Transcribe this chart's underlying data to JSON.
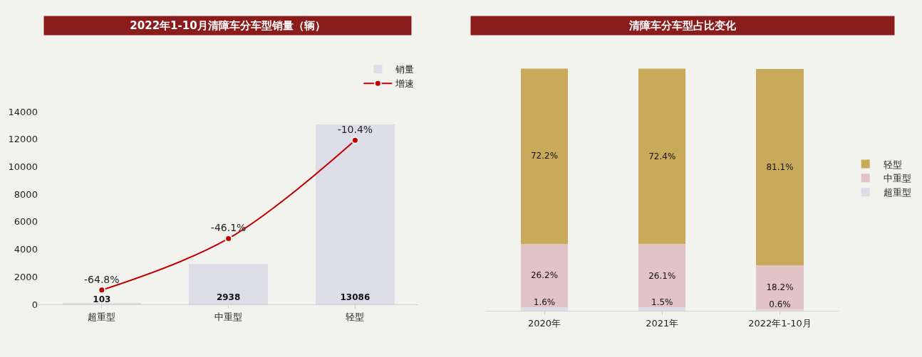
{
  "chart_data": [
    {
      "type": "bar",
      "title": "2022年1-10月清障车分车型销量（辆）",
      "categories": [
        "超重型",
        "中重型",
        "轻型"
      ],
      "series": [
        {
          "name": "销量",
          "type": "bar",
          "color": "#dcdde6",
          "values": [
            103,
            2938,
            13086
          ],
          "value_labels": [
            "103",
            "2938",
            "13086"
          ]
        },
        {
          "name": "增速",
          "type": "line",
          "axis": "y2",
          "color": "#c00000",
          "marker": "circle",
          "values": [
            -64.8,
            -46.1,
            -10.4
          ],
          "value_labels": [
            "-64.8%",
            "-46.1%",
            "-10.4%"
          ]
        }
      ],
      "ylim": [
        0,
        14000
      ],
      "yticks": [
        0,
        2000,
        4000,
        6000,
        8000,
        10000,
        12000,
        14000
      ],
      "y2lim": [
        -70,
        0
      ],
      "legend": "top right",
      "grid": false
    },
    {
      "type": "bar",
      "stacked": true,
      "title": "清障车分车型占比变化",
      "categories": [
        "2020年",
        "2021年",
        "2022年1-10月"
      ],
      "series": [
        {
          "name": "超重型",
          "color": "#dcdde6",
          "values": [
            1.6,
            1.5,
            0.6
          ],
          "value_labels": [
            "1.6%",
            "1.5%",
            "0.6%"
          ]
        },
        {
          "name": "中重型",
          "color": "#e2c3c6",
          "values": [
            26.2,
            26.1,
            18.2
          ],
          "value_labels": [
            "26.2%",
            "26.1%",
            "18.2%"
          ]
        },
        {
          "name": "轻型",
          "color": "#c9a95a",
          "values": [
            72.2,
            72.4,
            81.1
          ],
          "value_labels": [
            "72.2%",
            "72.4%",
            "81.1%"
          ]
        }
      ],
      "ylim": [
        0,
        100
      ],
      "legend": "right"
    }
  ]
}
